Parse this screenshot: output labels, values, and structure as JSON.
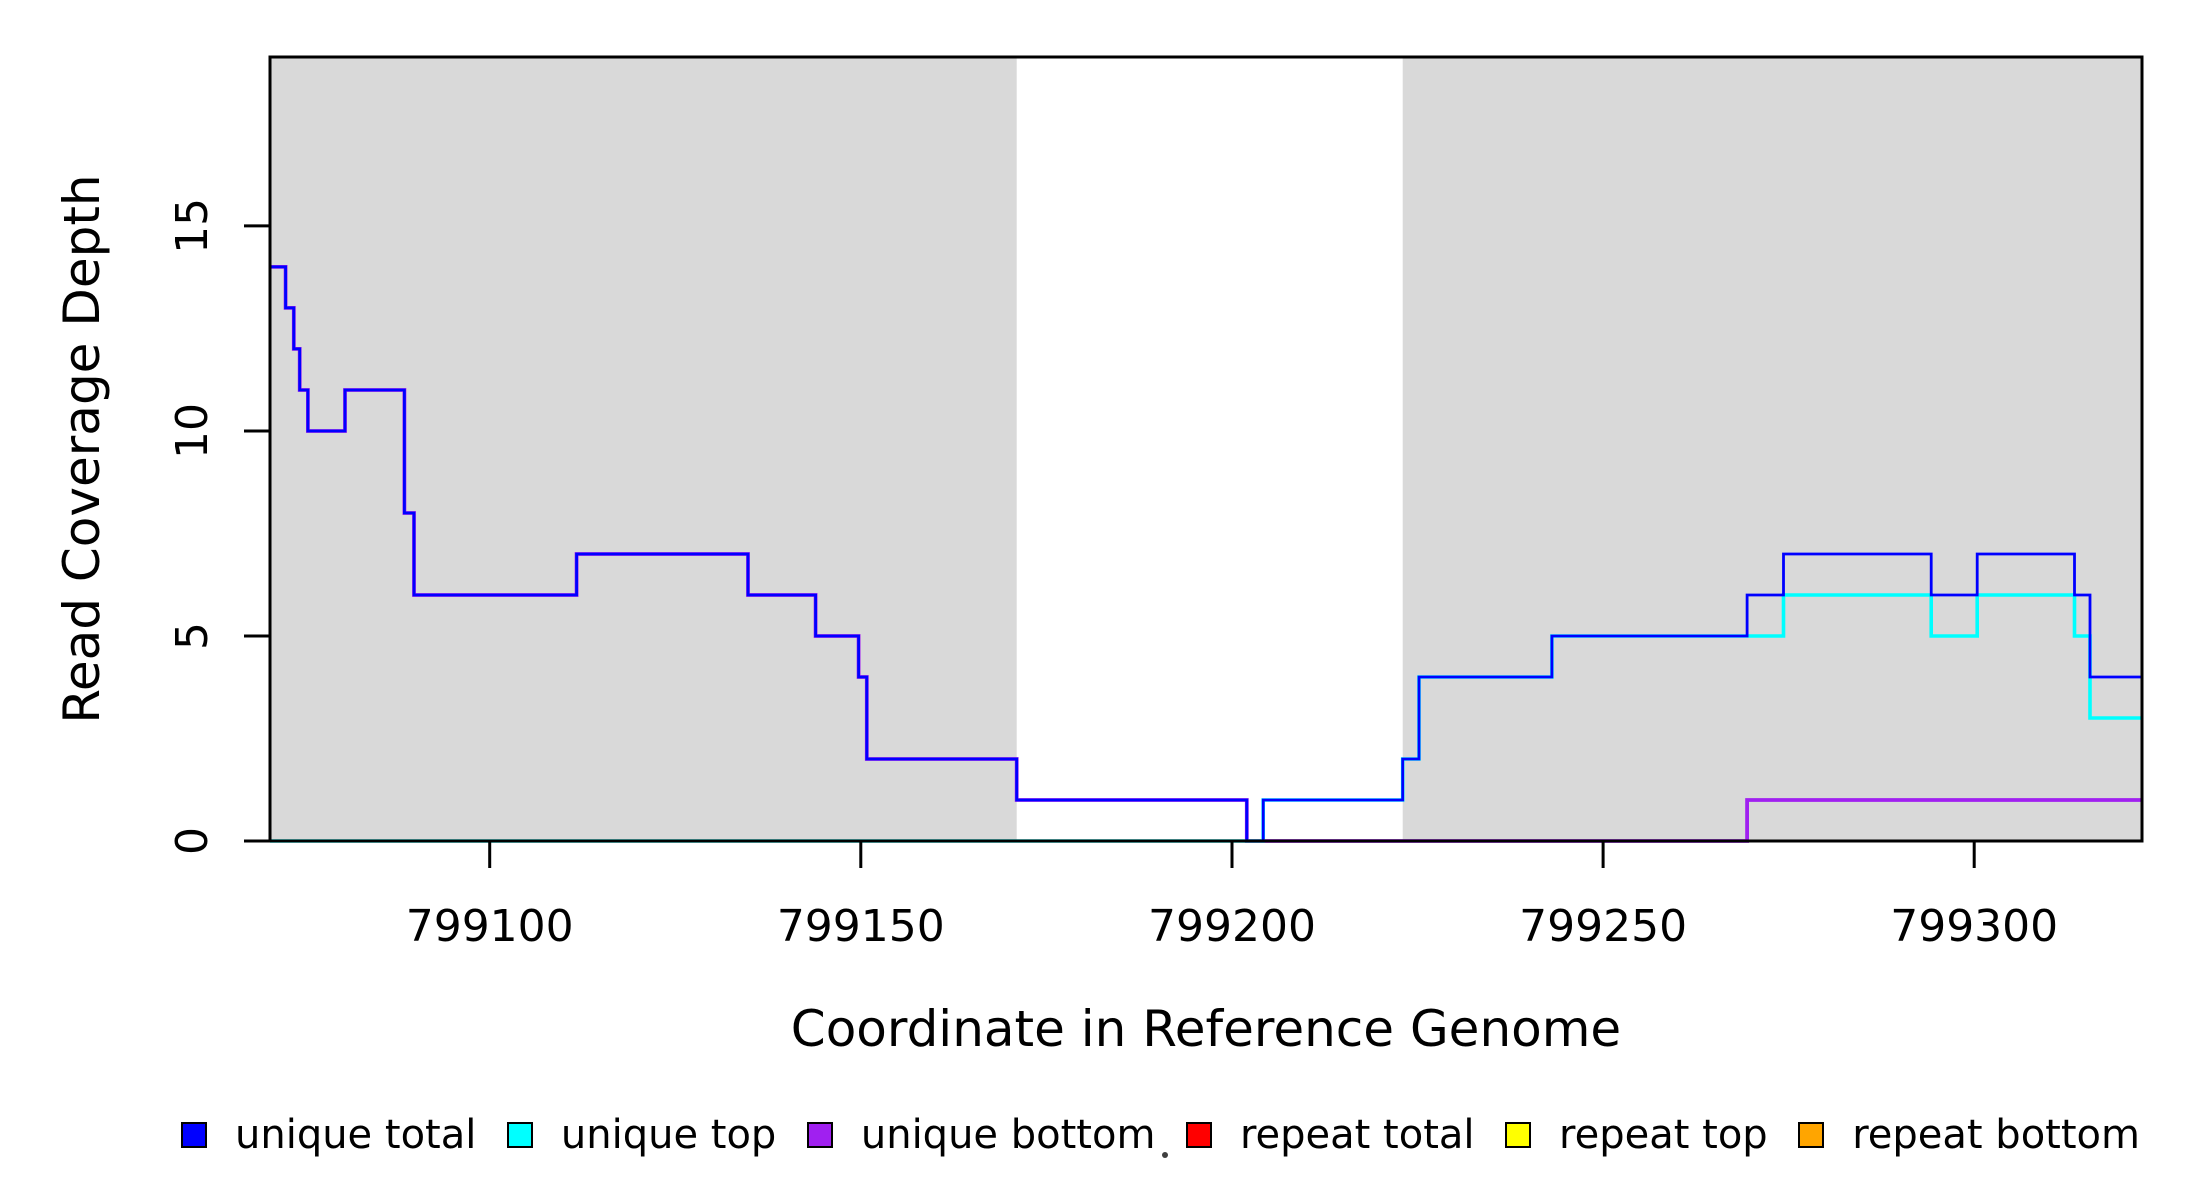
{
  "figure": {
    "background": "#FFFFFF",
    "axis_color": "#000000",
    "shade_color": "#D9D9D9"
  },
  "chart_data": {
    "type": "line",
    "subtype": "step-coverage-plot",
    "title": "",
    "xlabel": "Coordinate in Reference Genome",
    "ylabel": "Read Coverage Depth",
    "xlim": [
      799070.4,
      799322.6
    ],
    "ylim": [
      0,
      19.12
    ],
    "grid": false,
    "legend_position": "bottom",
    "x_ticks": [
      {
        "value": 799100,
        "label": "799100"
      },
      {
        "value": 799150,
        "label": "799150"
      },
      {
        "value": 799200,
        "label": "799200"
      },
      {
        "value": 799250,
        "label": "799250"
      },
      {
        "value": 799300,
        "label": "799300"
      }
    ],
    "y_ticks": [
      {
        "value": 0,
        "label": "0"
      },
      {
        "value": 5,
        "label": "5"
      },
      {
        "value": 10,
        "label": "10"
      },
      {
        "value": 15,
        "label": "15"
      }
    ],
    "shaded_regions": [
      {
        "start": 799070.4,
        "end": 799171.0
      },
      {
        "start": 799223.0,
        "end": 799322.6
      }
    ],
    "series": [
      {
        "name": "repeat total",
        "color": "#FF0000",
        "line_width": 2.4,
        "steps": [
          [
            799070.4,
            0
          ],
          [
            799322.6,
            0
          ]
        ]
      },
      {
        "name": "repeat top",
        "color": "#FFFF00",
        "line_width": 2.4,
        "steps": [
          [
            799070.4,
            0
          ],
          [
            799322.6,
            0
          ]
        ]
      },
      {
        "name": "repeat bottom",
        "color": "#FFA500",
        "line_width": 2.4,
        "steps": [
          [
            799070.4,
            0
          ],
          [
            799322.6,
            0
          ]
        ]
      },
      {
        "name": "unique bottom",
        "color": "#A020F0",
        "line_width": 3.8,
        "steps": [
          [
            799070.4,
            14
          ],
          [
            799072.5,
            13
          ],
          [
            799073.6,
            12
          ],
          [
            799074.4,
            11
          ],
          [
            799075.5,
            10
          ],
          [
            799080.5,
            11
          ],
          [
            799088.5,
            8
          ],
          [
            799089.8,
            6
          ],
          [
            799111.7,
            7
          ],
          [
            799134.8,
            6
          ],
          [
            799143.9,
            5
          ],
          [
            799149.7,
            4
          ],
          [
            799150.8,
            2
          ],
          [
            799171.0,
            1
          ],
          [
            799202.0,
            0
          ],
          [
            799269.4,
            1
          ],
          [
            799322.6,
            1
          ]
        ]
      },
      {
        "name": "unique top",
        "color": "#00FFFF",
        "line_width": 3.6,
        "steps": [
          [
            799070.4,
            0
          ],
          [
            799204.2,
            1
          ],
          [
            799223.0,
            2
          ],
          [
            799225.2,
            4
          ],
          [
            799243.1,
            5
          ],
          [
            799274.3,
            6
          ],
          [
            799294.2,
            5
          ],
          [
            799300.4,
            6
          ],
          [
            799313.5,
            5
          ],
          [
            799315.6,
            3
          ],
          [
            799322.6,
            3
          ]
        ]
      },
      {
        "name": "unique total",
        "color": "#0000FF",
        "line_width": 2.8,
        "steps": [
          [
            799070.4,
            14
          ],
          [
            799072.5,
            13
          ],
          [
            799073.6,
            12
          ],
          [
            799074.4,
            11
          ],
          [
            799075.5,
            10
          ],
          [
            799080.5,
            11
          ],
          [
            799088.5,
            8
          ],
          [
            799089.8,
            6
          ],
          [
            799111.7,
            7
          ],
          [
            799134.8,
            6
          ],
          [
            799143.9,
            5
          ],
          [
            799149.7,
            4
          ],
          [
            799150.8,
            2
          ],
          [
            799171.0,
            1
          ],
          [
            799202.0,
            0
          ],
          [
            799204.2,
            1
          ],
          [
            799223.0,
            2
          ],
          [
            799225.2,
            4
          ],
          [
            799243.1,
            5
          ],
          [
            799269.4,
            6
          ],
          [
            799274.3,
            7
          ],
          [
            799294.2,
            6
          ],
          [
            799300.4,
            7
          ],
          [
            799313.5,
            6
          ],
          [
            799315.6,
            4
          ],
          [
            799322.6,
            4
          ]
        ]
      }
    ]
  },
  "legend": {
    "items": [
      {
        "label": "unique total",
        "color": "#0000FF"
      },
      {
        "label": "unique top",
        "color": "#00FFFF"
      },
      {
        "label": "unique bottom",
        "color": "#A020F0"
      },
      {
        "label": "repeat total",
        "color": "#FF0000"
      },
      {
        "label": "repeat top",
        "color": "#FFFF00"
      },
      {
        "label": "repeat bottom",
        "color": "#FFA500"
      }
    ]
  }
}
